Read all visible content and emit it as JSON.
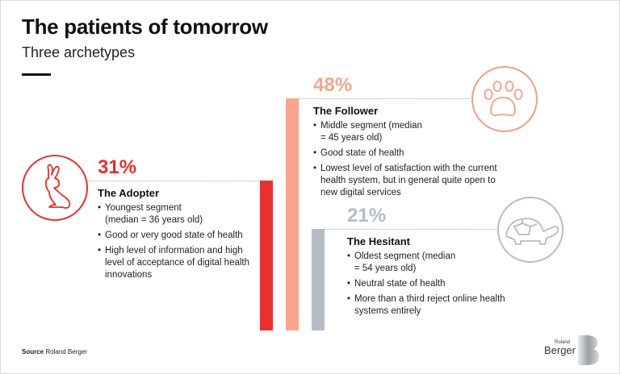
{
  "header": {
    "title": "The patients of tomorrow",
    "subtitle": "Three archetypes"
  },
  "chart_data": {
    "type": "bar",
    "title": "The patients of tomorrow",
    "subtitle": "Three archetypes",
    "categories": [
      "The Adopter",
      "The Follower",
      "The Hesitant"
    ],
    "values": [
      31,
      48,
      21
    ],
    "unit": "%",
    "ylim": [
      0,
      100
    ],
    "data_labels": [
      "31%",
      "48%",
      "21%"
    ],
    "colors": [
      "#e8302f",
      "#f7a58c",
      "#b5bdc4"
    ]
  },
  "archetypes": [
    {
      "pct": "31%",
      "name": "The Adopter",
      "icon": "rabbit-icon",
      "bullets": [
        "Youngest segment (median = 36 years old)",
        "Good or very good state of health",
        "High level of information and high level of acceptance of digital health innovations"
      ]
    },
    {
      "pct": "48%",
      "name": "The Follower",
      "icon": "paw-icon",
      "bullets": [
        "Middle segment (median = 45 years old)",
        "Good state of health",
        "Lowest level of satisfaction with the current health system, but in general quite open to new digital services"
      ]
    },
    {
      "pct": "21%",
      "name": "The Hesitant",
      "icon": "turtle-icon",
      "bullets": [
        "Oldest segment (median = 54 years old)",
        "Neutral state of health",
        "More than a third reject online health systems entirely"
      ]
    }
  ],
  "footer": {
    "source_label": "Source",
    "source_text": "Roland Berger",
    "logo_text": "Roland Berger"
  }
}
